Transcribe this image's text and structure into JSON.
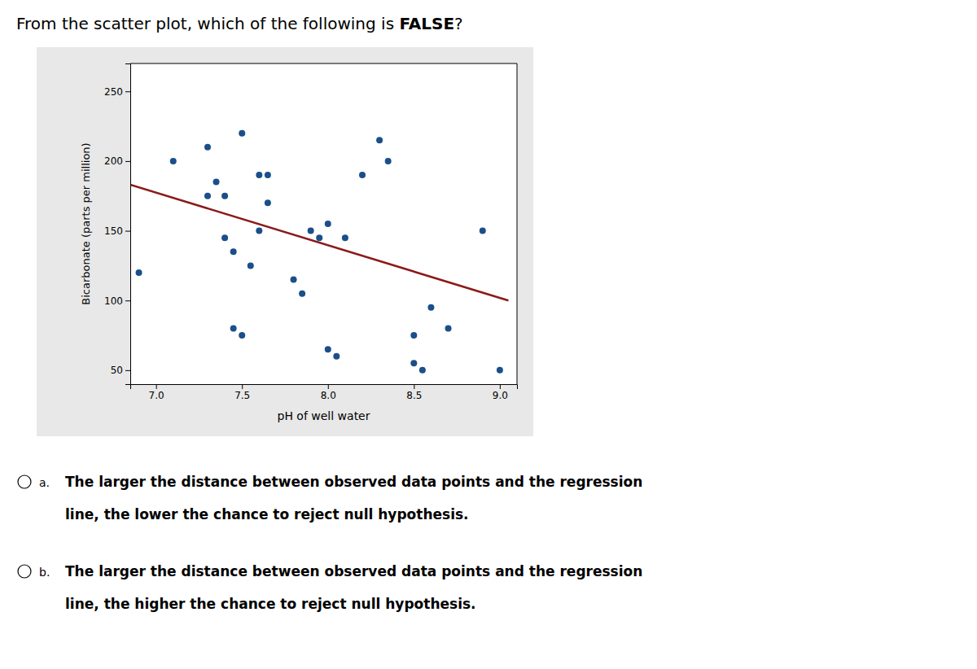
{
  "chart_data": {
    "type": "scatter",
    "title": "From the scatter plot, which of the following is FALSE?",
    "xlabel": "pH of well water",
    "ylabel": "Bicarbonate (parts per million)",
    "series": [
      {
        "type": "scatter",
        "color": "#1a4f8a",
        "x": [
          6.9,
          7.1,
          7.3,
          7.3,
          7.35,
          7.4,
          7.4,
          7.45,
          7.45,
          7.5,
          7.5,
          7.55,
          7.6,
          7.6,
          7.65,
          7.65,
          7.8,
          7.85,
          7.9,
          7.95,
          8.0,
          8.0,
          8.05,
          8.1,
          8.2,
          8.3,
          8.35,
          8.5,
          8.5,
          8.55,
          8.6,
          8.7,
          8.9,
          9.0
        ],
        "values": [
          120,
          200,
          210,
          175,
          185,
          175,
          145,
          135,
          80,
          75,
          220,
          125,
          190,
          150,
          170,
          190,
          115,
          105,
          150,
          145,
          155,
          65,
          60,
          145,
          190,
          215,
          200,
          75,
          55,
          50,
          95,
          80,
          150,
          50
        ]
      },
      {
        "type": "line",
        "color": "#8b1a1a",
        "x": [
          6.85,
          9.05
        ],
        "values": [
          183,
          100
        ]
      }
    ],
    "xlim": [
      6.85,
      9.1
    ],
    "ylim": [
      40,
      270
    ],
    "xticks": [
      {
        "value": 7.0,
        "label": "7.0"
      },
      7.5,
      {
        "value": 8.0,
        "label": "8.0"
      },
      8.5,
      {
        "value": 9.0,
        "label": "9.0"
      }
    ],
    "yticks": [
      50,
      100,
      150,
      200,
      250
    ],
    "grid": false,
    "annotations": [
      {
        "label": "a.",
        "lines": [
          "The larger the distance between observed data points and the regression",
          "line, the lower the chance to reject null hypothesis."
        ]
      },
      {
        "label": "b.",
        "lines": [
          "The larger the distance between observed data points and the regression",
          "line, the higher the chance to reject null hypothesis."
        ]
      }
    ]
  }
}
